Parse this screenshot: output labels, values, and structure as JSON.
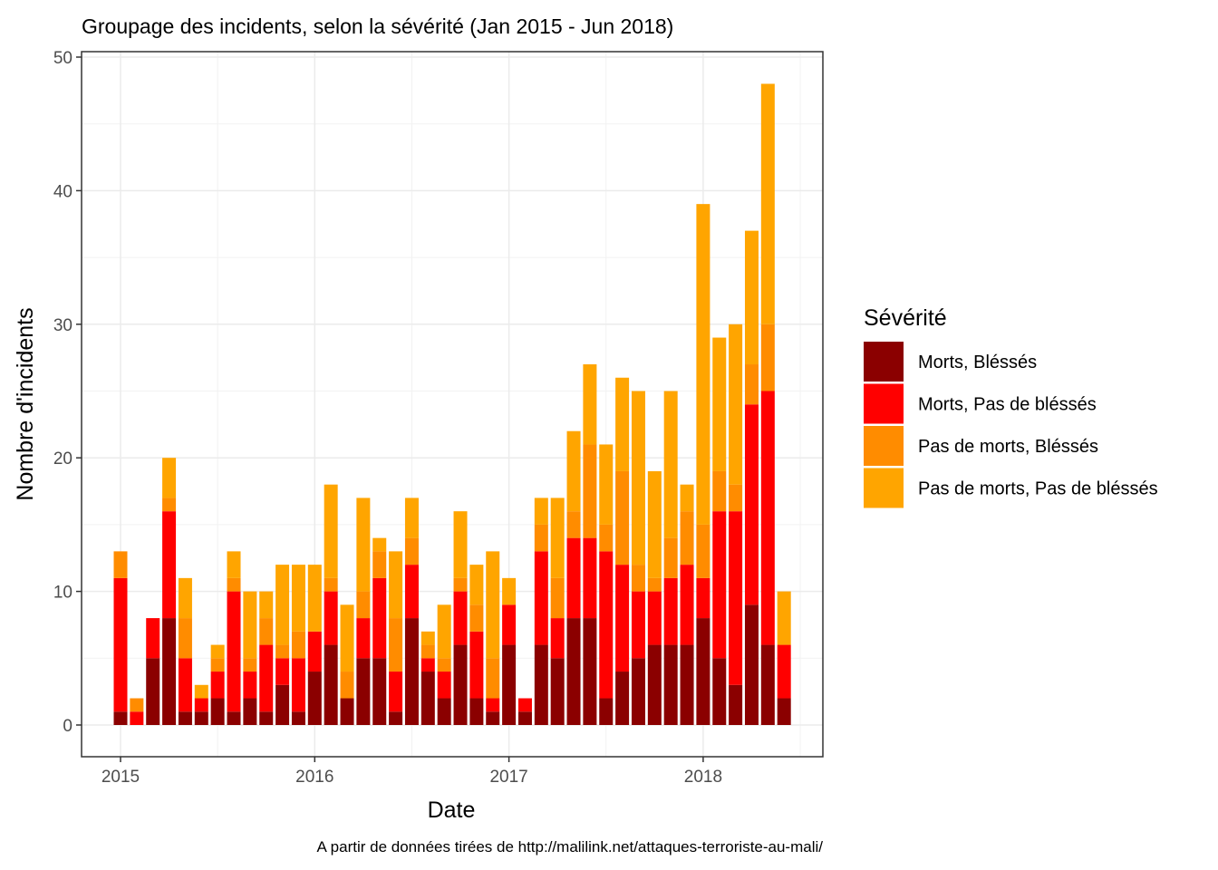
{
  "chart_data": {
    "type": "bar",
    "stacked": true,
    "title": "Groupage des incidents, selon la sévérité (Jan 2015 - Jun 2018)",
    "xlabel": "Date",
    "ylabel": "Nombre d'incidents",
    "caption": "A partir de données tirées de http://malilink.net/attaques-terroriste-au-mali/",
    "ylim": [
      0,
      50
    ],
    "yticks": [
      0,
      10,
      20,
      30,
      40,
      50
    ],
    "xticks": [
      "2015",
      "2016",
      "2017",
      "2018"
    ],
    "grid": true,
    "legend": {
      "title": "Sévérité",
      "position": "right"
    },
    "categories": [
      "2015-01",
      "2015-02",
      "2015-03",
      "2015-04",
      "2015-05",
      "2015-06",
      "2015-07",
      "2015-08",
      "2015-09",
      "2015-10",
      "2015-11",
      "2015-12",
      "2016-01",
      "2016-02",
      "2016-03",
      "2016-04",
      "2016-05",
      "2016-06",
      "2016-07",
      "2016-08",
      "2016-09",
      "2016-10",
      "2016-11",
      "2016-12",
      "2017-01",
      "2017-02",
      "2017-03",
      "2017-04",
      "2017-05",
      "2017-06",
      "2017-07",
      "2017-08",
      "2017-09",
      "2017-10",
      "2017-11",
      "2017-12",
      "2018-01",
      "2018-02",
      "2018-03",
      "2018-04",
      "2018-05",
      "2018-06"
    ],
    "series": [
      {
        "name": "Morts, Blessés",
        "label": "Morts, Bléssés",
        "color": "#8B0000",
        "values": [
          1,
          0,
          5,
          8,
          1,
          1,
          2,
          1,
          2,
          1,
          3,
          1,
          4,
          6,
          2,
          5,
          5,
          1,
          8,
          4,
          2,
          6,
          2,
          1,
          6,
          1,
          6,
          5,
          8,
          8,
          2,
          4,
          5,
          6,
          6,
          6,
          8,
          5,
          3,
          9,
          6,
          2
        ]
      },
      {
        "name": "Morts, Pas de blessés",
        "label": "Morts, Pas de bléssés",
        "color": "#FF0000",
        "values": [
          10,
          1,
          3,
          8,
          4,
          1,
          2,
          9,
          2,
          5,
          2,
          4,
          3,
          4,
          0,
          3,
          6,
          3,
          4,
          1,
          2,
          4,
          5,
          1,
          3,
          1,
          7,
          3,
          6,
          6,
          11,
          8,
          5,
          4,
          5,
          6,
          3,
          11,
          13,
          15,
          19,
          4
        ]
      },
      {
        "name": "Pas de morts, Blessés",
        "label": "Pas de morts, Bléssés",
        "color": "#FF8C00",
        "values": [
          2,
          1,
          0,
          1,
          3,
          0,
          1,
          1,
          1,
          2,
          1,
          2,
          0,
          1,
          2,
          2,
          2,
          4,
          2,
          1,
          1,
          1,
          2,
          3,
          0,
          0,
          2,
          3,
          2,
          7,
          2,
          7,
          2,
          1,
          3,
          4,
          4,
          3,
          2,
          3,
          5,
          0
        ]
      },
      {
        "name": "Pas de morts, Pas de blessés",
        "label": "Pas de morts, Pas de bléssés",
        "color": "#FFA500",
        "values": [
          0,
          0,
          0,
          3,
          3,
          1,
          1,
          2,
          5,
          2,
          6,
          5,
          5,
          7,
          5,
          7,
          1,
          5,
          3,
          1,
          4,
          5,
          3,
          8,
          2,
          0,
          2,
          6,
          6,
          6,
          6,
          7,
          13,
          8,
          11,
          2,
          24,
          10,
          12,
          10,
          18,
          4
        ]
      }
    ]
  }
}
